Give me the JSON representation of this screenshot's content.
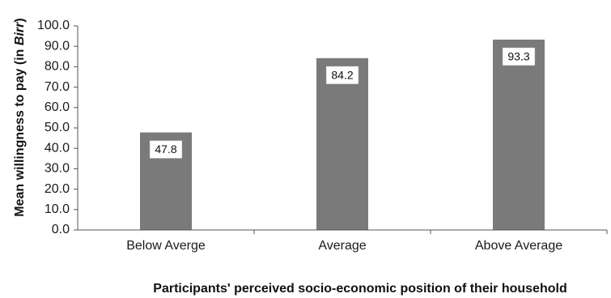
{
  "chart_data": {
    "type": "bar",
    "categories": [
      "Below Averge",
      "Average",
      "Above Average"
    ],
    "values": [
      47.8,
      84.2,
      93.3
    ],
    "data_labels": [
      "47.8",
      "84.2",
      "93.3"
    ],
    "xlabel": "Participants' perceived socio-economic position of their household",
    "ylabel_parts": [
      "Mean willingness  to pay (in ",
      "Birr",
      ")"
    ],
    "ylim": [
      0,
      100
    ],
    "yticks": [
      "0.0",
      "10.0",
      "20.0",
      "30.0",
      "40.0",
      "50.0",
      "60.0",
      "70.0",
      "80.0",
      "90.0",
      "100.0"
    ],
    "grid": false,
    "legend": "none",
    "bar_color": "#7a7a7b",
    "label_box_color": "#ffffff"
  }
}
